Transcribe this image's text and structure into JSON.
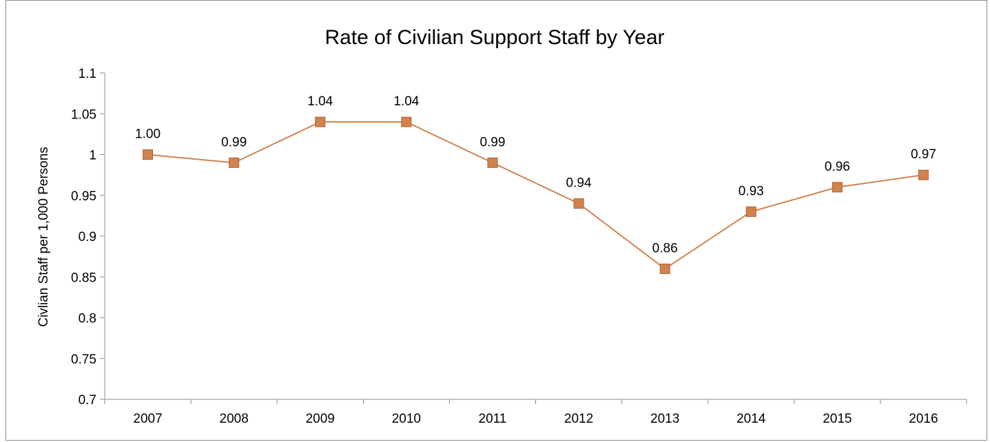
{
  "chart_data": {
    "type": "line",
    "title": "Rate of Civilian Support Staff by Year",
    "xlabel": "",
    "ylabel": "Civlian Staff per 1,000 Persons",
    "categories": [
      "2007",
      "2008",
      "2009",
      "2010",
      "2011",
      "2012",
      "2013",
      "2014",
      "2015",
      "2016"
    ],
    "series": [
      {
        "values": [
          1.0,
          0.99,
          1.04,
          1.04,
          0.99,
          0.94,
          0.86,
          0.93,
          0.96,
          0.975
        ],
        "labels": [
          "1.00",
          "0.99",
          "1.04",
          "1.04",
          "0.99",
          "0.94",
          "0.86",
          "0.93",
          "0.96",
          "0.97"
        ],
        "color": "#d0834e",
        "marker_fill": "#d0834e",
        "marker_stroke": "#b0612e"
      }
    ],
    "yticks": [
      "0.7",
      "0.75",
      "0.8",
      "0.85",
      "0.9",
      "0.95",
      "1",
      "1.05",
      "1.1"
    ],
    "ylim": [
      0.7,
      1.1
    ],
    "grid": false,
    "legend": "none"
  }
}
